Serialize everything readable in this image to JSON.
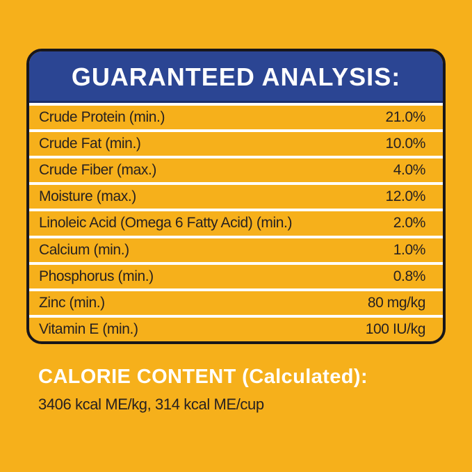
{
  "panel": {
    "title": "GUARANTEED ANALYSIS:",
    "rows": [
      {
        "label": "Crude Protein (min.)",
        "value": "21.0%"
      },
      {
        "label": "Crude Fat (min.)",
        "value": "10.0%"
      },
      {
        "label": "Crude Fiber (max.)",
        "value": "4.0%"
      },
      {
        "label": "Moisture (max.)",
        "value": "12.0%"
      },
      {
        "label": "Linoleic Acid (Omega 6 Fatty Acid) (min.)",
        "value": "2.0%"
      },
      {
        "label": "Calcium (min.)",
        "value": "1.0%"
      },
      {
        "label": "Phosphorus (min.)",
        "value": "0.8%"
      },
      {
        "label": "Zinc (min.)",
        "value": "80 mg/kg"
      },
      {
        "label": "Vitamin E (min.)",
        "value": "100 IU/kg"
      }
    ]
  },
  "calorie": {
    "heading": "CALORIE CONTENT (Calculated):",
    "value": "3406 kcal ME/kg, 314 kcal ME/cup"
  },
  "colors": {
    "background_yellow": "#F6B01B",
    "header_blue": "#2B4593",
    "border_dark": "#18161A",
    "text_dark": "#272120",
    "separator_white": "#FFFFFF"
  }
}
